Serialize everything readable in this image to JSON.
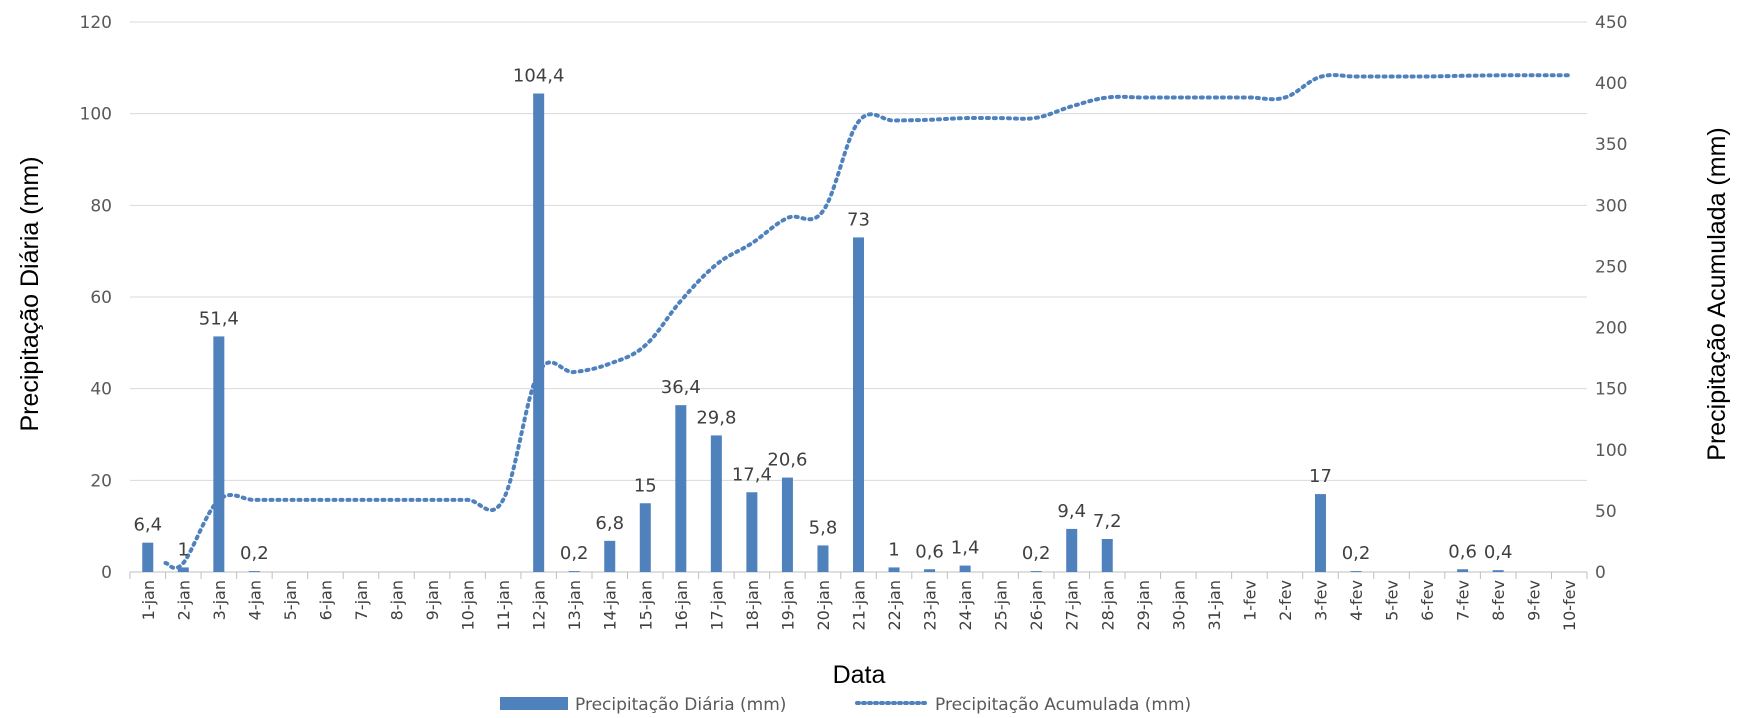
{
  "chart_data": {
    "type": "bar",
    "categories": [
      "1-jan",
      "2-jan",
      "3-jan",
      "4-jan",
      "5-jan",
      "6-jan",
      "7-jan",
      "8-jan",
      "9-jan",
      "10-jan",
      "11-jan",
      "12-jan",
      "13-jan",
      "14-jan",
      "15-jan",
      "16-jan",
      "17-jan",
      "18-jan",
      "19-jan",
      "20-jan",
      "21-jan",
      "22-jan",
      "23-jan",
      "24-jan",
      "25-jan",
      "26-jan",
      "27-jan",
      "28-jan",
      "29-jan",
      "30-jan",
      "31-jan",
      "1-fev",
      "2-fev",
      "3-fev",
      "4-fev",
      "5-fev",
      "6-fev",
      "7-fev",
      "8-fev",
      "9-fev",
      "10-fev"
    ],
    "series": [
      {
        "name": "Precipitação Diária (mm)",
        "type": "bar",
        "axis": "left",
        "color": "#4F81BD",
        "values": [
          6.4,
          1,
          51.4,
          0.2,
          0,
          0,
          0,
          0,
          0,
          0,
          0,
          104.4,
          0.2,
          6.8,
          15,
          36.4,
          29.8,
          17.4,
          20.6,
          5.8,
          73,
          1,
          0.6,
          1.4,
          0,
          0.2,
          9.4,
          7.2,
          0,
          0,
          0,
          0,
          0,
          17,
          0.2,
          0,
          0,
          0.6,
          0.4,
          0,
          0
        ],
        "labels": [
          "6,4",
          "1",
          "51,4",
          "0,2",
          "",
          "",
          "",
          "",
          "",
          "",
          "",
          "104,4",
          "0,2",
          "6,8",
          "15",
          "36,4",
          "29,8",
          "17,4",
          "20,6",
          "5,8",
          "73",
          "1",
          "0,6",
          "1,4",
          "",
          "0,2",
          "9,4",
          "7,2",
          "",
          "",
          "",
          "",
          "",
          "17",
          "0,2",
          "",
          "",
          "0,6",
          "0,4",
          "",
          ""
        ]
      },
      {
        "name": "Precipitação Acumulada (mm)",
        "type": "line",
        "style": "dotted",
        "axis": "right",
        "color": "#4F81BD",
        "values": [
          null,
          7.4,
          58.8,
          59,
          59,
          59,
          59,
          59,
          59,
          59,
          59,
          163.4,
          163.6,
          170.4,
          185.4,
          221.8,
          251.6,
          269,
          289.6,
          295.4,
          368.4,
          369.4,
          370,
          371.4,
          371.4,
          371.6,
          381,
          388.2,
          388.2,
          388.2,
          388.2,
          388.2,
          388.2,
          405.2,
          405.4,
          405.4,
          405.4,
          406,
          406.4,
          406.4,
          406.4
        ]
      }
    ],
    "xlabel": "Data",
    "ylabel": "Precipitação Diária (mm)",
    "y2label": "Precipitação Acumulada (mm)",
    "ylim": [
      0,
      120
    ],
    "y2lim": [
      0,
      450
    ],
    "yticks": [
      "0",
      "20",
      "40",
      "60",
      "80",
      "100",
      "120"
    ],
    "y2ticks": [
      "0",
      "50",
      "100",
      "150",
      "200",
      "250",
      "300",
      "350",
      "400",
      "450"
    ],
    "grid": true,
    "legend_position": "bottom"
  }
}
